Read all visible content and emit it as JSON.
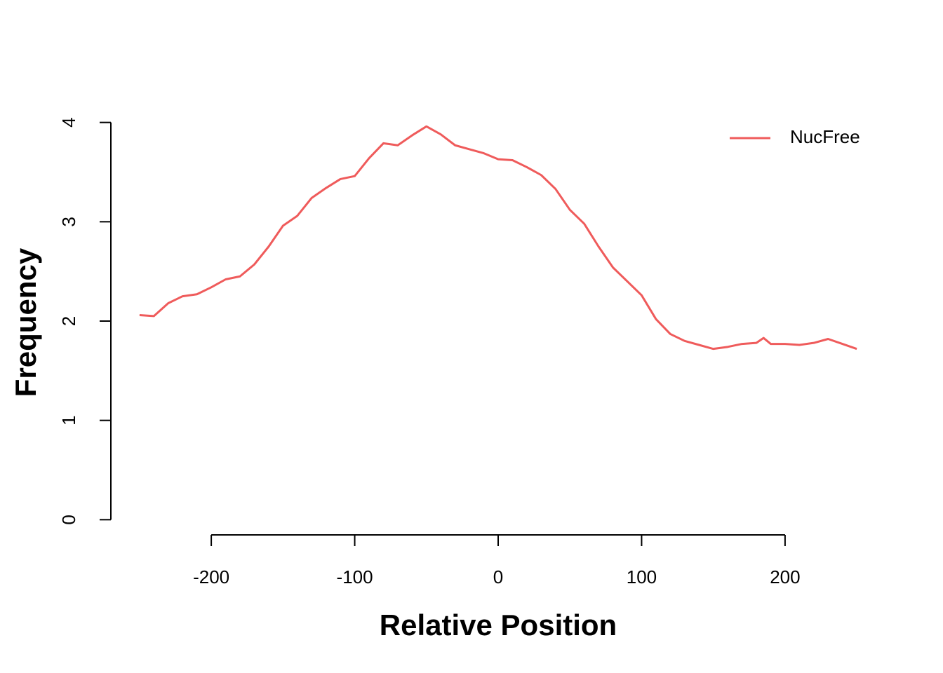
{
  "chart_data": {
    "type": "line",
    "xlabel": "Relative Position",
    "ylabel": "Frequency",
    "x": [
      -250,
      -240,
      -230,
      -220,
      -210,
      -200,
      -190,
      -180,
      -170,
      -160,
      -150,
      -140,
      -130,
      -120,
      -110,
      -100,
      -90,
      -80,
      -70,
      -60,
      -50,
      -40,
      -30,
      -20,
      -10,
      0,
      10,
      20,
      30,
      40,
      50,
      60,
      70,
      80,
      90,
      100,
      110,
      120,
      130,
      140,
      150,
      160,
      170,
      180,
      185,
      190,
      200,
      210,
      220,
      230,
      240,
      250
    ],
    "series": [
      {
        "name": "NucFree",
        "color": "#ef5b5b",
        "values": [
          2.06,
          2.05,
          2.18,
          2.25,
          2.27,
          2.34,
          2.42,
          2.45,
          2.57,
          2.75,
          2.96,
          3.06,
          3.24,
          3.34,
          3.43,
          3.46,
          3.64,
          3.79,
          3.77,
          3.87,
          3.96,
          3.88,
          3.77,
          3.73,
          3.69,
          3.63,
          3.62,
          3.55,
          3.47,
          3.33,
          3.12,
          2.98,
          2.75,
          2.54,
          2.4,
          2.26,
          2.02,
          1.87,
          1.8,
          1.76,
          1.72,
          1.74,
          1.77,
          1.78,
          1.83,
          1.77,
          1.77,
          1.76,
          1.78,
          1.82,
          1.77,
          1.72
        ]
      }
    ],
    "xlim": [
      -270,
      270
    ],
    "ylim": [
      -0.16,
      4.16
    ],
    "xticks": [
      -200,
      -100,
      0,
      100,
      200
    ],
    "yticks": [
      0,
      1,
      2,
      3,
      4
    ],
    "legend_position": "top-right",
    "grid": false
  }
}
